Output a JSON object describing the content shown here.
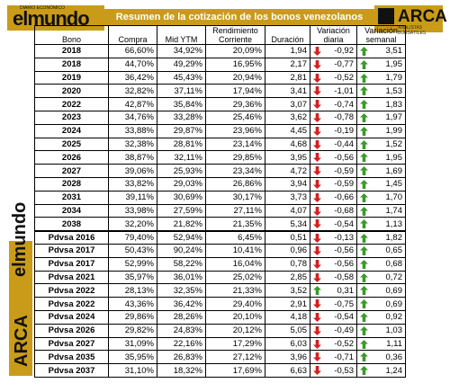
{
  "brand": {
    "name": "elmundo",
    "small": "DIARIO ECONÓMICO"
  },
  "title": "Resumen de la cotización de los bonos venezolanos",
  "arca": {
    "name": "ARCA",
    "sub": "ANALISTAS BURSÁTILES"
  },
  "side": {
    "brand": "elmundo",
    "arca": "ARCA"
  },
  "headers": [
    "Bono",
    "Compra",
    "Mid YTM",
    "Rendimiento Corriente",
    "Duración",
    "Variación diaria",
    "Variación semanal"
  ],
  "rows": [
    {
      "bono": "2018",
      "compra": "66,60%",
      "mid": "34,92%",
      "rend": "20,09%",
      "dur": "1,94",
      "vd": "-0,92",
      "vs": "3,51",
      "vd_up": false,
      "vs_up": true
    },
    {
      "bono": "2018",
      "compra": "44,70%",
      "mid": "49,29%",
      "rend": "16,95%",
      "dur": "2,17",
      "vd": "-0,77",
      "vs": "1,95",
      "vd_up": false,
      "vs_up": true
    },
    {
      "bono": "2019",
      "compra": "36,42%",
      "mid": "45,43%",
      "rend": "20,94%",
      "dur": "2,81",
      "vd": "-0,52",
      "vs": "1,79",
      "vd_up": false,
      "vs_up": true
    },
    {
      "bono": "2020",
      "compra": "32,82%",
      "mid": "37,11%",
      "rend": "17,94%",
      "dur": "3,41",
      "vd": "-1,01",
      "vs": "1,53",
      "vd_up": false,
      "vs_up": true
    },
    {
      "bono": "2022",
      "compra": "42,87%",
      "mid": "35,84%",
      "rend": "29,36%",
      "dur": "3,07",
      "vd": "-0,74",
      "vs": "1,83",
      "vd_up": false,
      "vs_up": true
    },
    {
      "bono": "2023",
      "compra": "34,76%",
      "mid": "33,28%",
      "rend": "25,46%",
      "dur": "3,62",
      "vd": "-0,78",
      "vs": "1,97",
      "vd_up": false,
      "vs_up": true
    },
    {
      "bono": "2024",
      "compra": "33,88%",
      "mid": "29,87%",
      "rend": "23,96%",
      "dur": "4,45",
      "vd": "-0,19",
      "vs": "1,99",
      "vd_up": false,
      "vs_up": true
    },
    {
      "bono": "2025",
      "compra": "32,38%",
      "mid": "28,81%",
      "rend": "23,14%",
      "dur": "4,68",
      "vd": "-0,44",
      "vs": "1,52",
      "vd_up": false,
      "vs_up": true
    },
    {
      "bono": "2026",
      "compra": "38,87%",
      "mid": "32,11%",
      "rend": "29,85%",
      "dur": "3,95",
      "vd": "-0,56",
      "vs": "1,95",
      "vd_up": false,
      "vs_up": true
    },
    {
      "bono": "2027",
      "compra": "39,06%",
      "mid": "25,93%",
      "rend": "23,34%",
      "dur": "4,72",
      "vd": "-0,59",
      "vs": "1,69",
      "vd_up": false,
      "vs_up": true
    },
    {
      "bono": "2028",
      "compra": "33,82%",
      "mid": "29,03%",
      "rend": "26,86%",
      "dur": "3,94",
      "vd": "-0,59",
      "vs": "1,45",
      "vd_up": false,
      "vs_up": true
    },
    {
      "bono": "2031",
      "compra": "39,11%",
      "mid": "30,69%",
      "rend": "30,17%",
      "dur": "3,73",
      "vd": "-0,66",
      "vs": "1,70",
      "vd_up": false,
      "vs_up": true
    },
    {
      "bono": "2034",
      "compra": "33,98%",
      "mid": "27,59%",
      "rend": "27,11%",
      "dur": "4,07",
      "vd": "-0,68",
      "vs": "1,74",
      "vd_up": false,
      "vs_up": true
    },
    {
      "bono": "2038",
      "compra": "32,20%",
      "mid": "21,82%",
      "rend": "21,35%",
      "dur": "5,34",
      "vd": "-0,54",
      "vs": "1,13",
      "vd_up": false,
      "vs_up": true
    },
    {
      "bono": "Pdvsa 2016",
      "compra": "79,40%",
      "mid": "52,94%",
      "rend": "6,45%",
      "dur": "0,51",
      "vd": "-0,13",
      "vs": "1,82",
      "vd_up": false,
      "vs_up": true
    },
    {
      "bono": "Pdvsa 2017",
      "compra": "50,43%",
      "mid": "90,24%",
      "rend": "10,41%",
      "dur": "0,96",
      "vd": "-0,56",
      "vs": "0,65",
      "vd_up": false,
      "vs_up": true
    },
    {
      "bono": "Pdvsa 2017",
      "compra": "52,99%",
      "mid": "58,22%",
      "rend": "16,04%",
      "dur": "0,78",
      "vd": "-0,56",
      "vs": "0,68",
      "vd_up": false,
      "vs_up": true
    },
    {
      "bono": "Pdvsa 2021",
      "compra": "35,97%",
      "mid": "36,01%",
      "rend": "25,02%",
      "dur": "2,85",
      "vd": "-0,58",
      "vs": "0,72",
      "vd_up": false,
      "vs_up": true
    },
    {
      "bono": "Pdvsa 2022",
      "compra": "28,13%",
      "mid": "32,35%",
      "rend": "21,33%",
      "dur": "3,52",
      "vd": "0,31",
      "vs": "0,69",
      "vd_up": true,
      "vs_up": true
    },
    {
      "bono": "Pdvsa 2022",
      "compra": "43,36%",
      "mid": "36,42%",
      "rend": "29,40%",
      "dur": "2,91",
      "vd": "-0,75",
      "vs": "0,69",
      "vd_up": false,
      "vs_up": true
    },
    {
      "bono": "Pdvsa 2024",
      "compra": "29,86%",
      "mid": "28,26%",
      "rend": "20,10%",
      "dur": "4,18",
      "vd": "-0,54",
      "vs": "0,92",
      "vd_up": false,
      "vs_up": true
    },
    {
      "bono": "Pdvsa 2026",
      "compra": "29,82%",
      "mid": "24,83%",
      "rend": "20,12%",
      "dur": "5,05",
      "vd": "-0,49",
      "vs": "1,03",
      "vd_up": false,
      "vs_up": true
    },
    {
      "bono": "Pdvsa 2027",
      "compra": "31,09%",
      "mid": "22,16%",
      "rend": "17,29%",
      "dur": "6,03",
      "vd": "-0,52",
      "vs": "1,11",
      "vd_up": false,
      "vs_up": true
    },
    {
      "bono": "Pdvsa 2035",
      "compra": "35,95%",
      "mid": "26,83%",
      "rend": "27,12%",
      "dur": "3,96",
      "vd": "-0,71",
      "vs": "0,36",
      "vd_up": false,
      "vs_up": true
    },
    {
      "bono": "Pdvsa 2037",
      "compra": "31,10%",
      "mid": "18,32%",
      "rend": "17,69%",
      "dur": "6,63",
      "vd": "-0,53",
      "vs": "1,24",
      "vd_up": false,
      "vs_up": true
    }
  ],
  "colors": {
    "gold": "#c99b18",
    "up": "#3a9a2a",
    "down": "#d42020"
  },
  "icons": {
    "up": "arrow-up-icon",
    "down": "arrow-down-icon"
  }
}
